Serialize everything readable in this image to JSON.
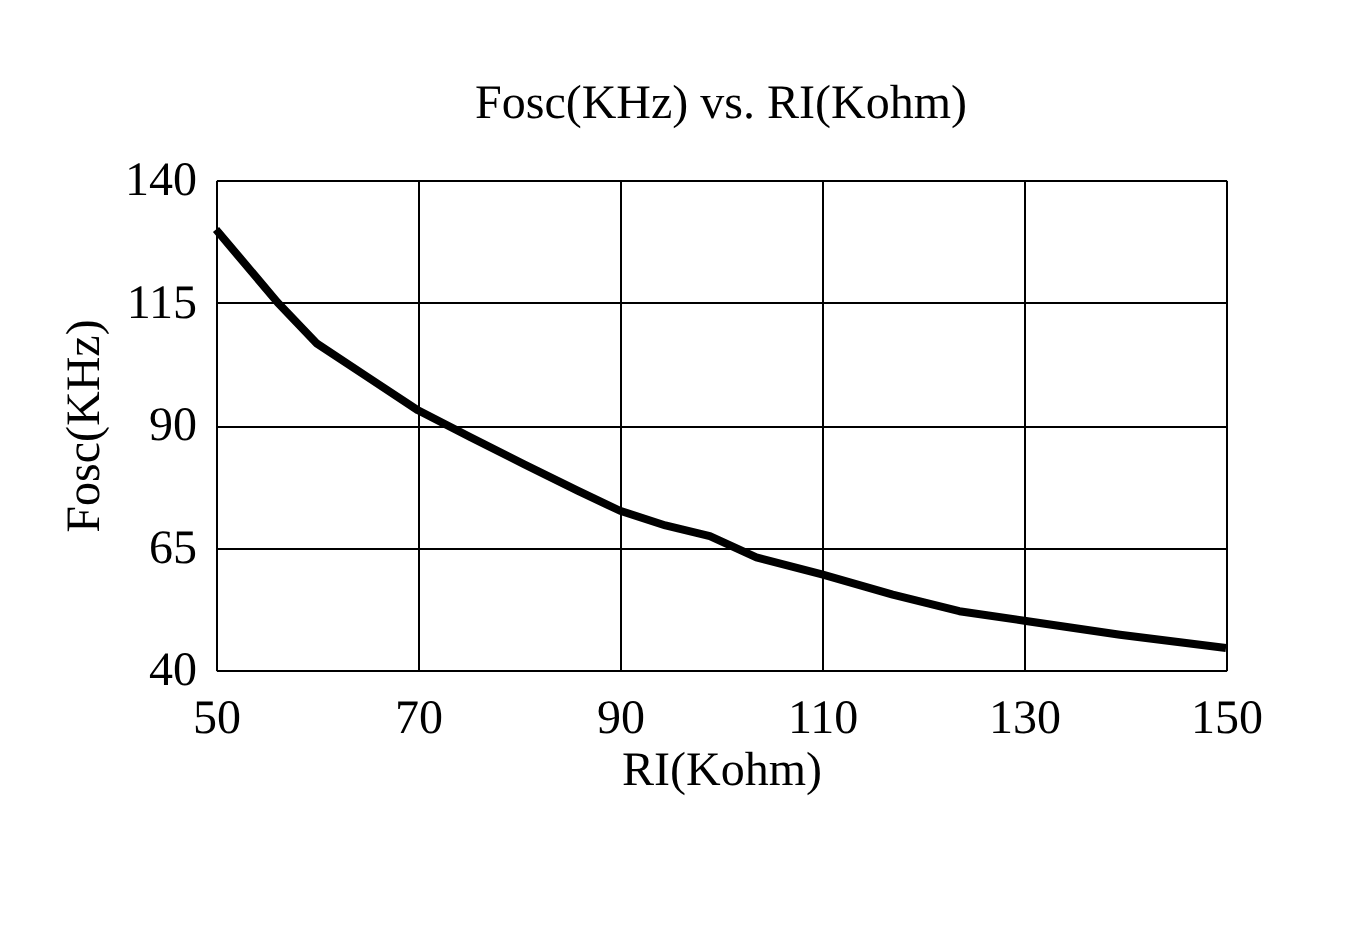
{
  "chart_data": {
    "type": "line",
    "title": "Fosc(KHz) vs. RI(Kohm)",
    "xlabel": "RI(Kohm)",
    "ylabel": "Fosc(KHz)",
    "x": [
      50,
      56.1,
      60,
      65,
      70,
      75.2,
      80.5,
      85.8,
      90,
      94.5,
      98.9,
      103.5,
      110,
      117,
      123.6,
      130.2,
      139.5,
      150
    ],
    "series": [
      {
        "color": "#000000",
        "values": [
          129.9,
          115,
          106.6,
          99.8,
          93,
          87.5,
          82,
          76.6,
          72.5,
          69.5,
          67.3,
          63,
          59.5,
          55.4,
          52,
          50,
          47.2,
          44.5
        ]
      }
    ],
    "xlim": [
      50,
      150
    ],
    "xticks": [
      50,
      70,
      90,
      110,
      130,
      150
    ],
    "ylim": [
      40,
      140
    ],
    "yticks": [
      40,
      65,
      90,
      115,
      140
    ],
    "grid": true,
    "marker": "none",
    "line_style": "solid"
  }
}
